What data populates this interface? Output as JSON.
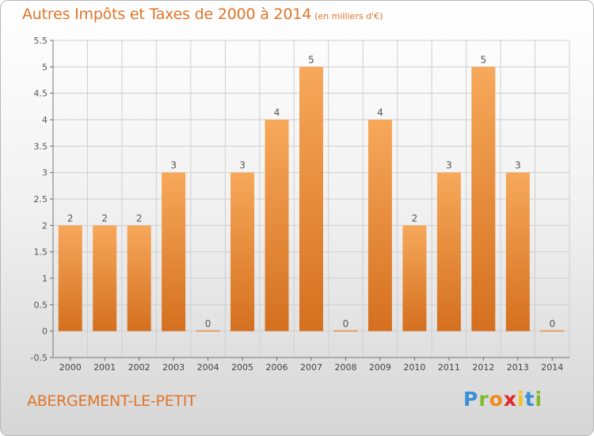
{
  "header": {
    "title": "Autres Impôts et Taxes de 2000 à 2014",
    "unit": "(en milliers d'€)"
  },
  "footer": {
    "commune": "ABERGEMENT-LE-PETIT",
    "logo_letters": [
      "P",
      "r",
      "o",
      "x",
      "i",
      "t",
      "i"
    ],
    "logo_colors": [
      "#3a8fd6",
      "#7dbb2c",
      "#f08a1c",
      "#e2262a",
      "#f3c11b",
      "#3a8fd6",
      "#7dbb2c"
    ]
  },
  "chart_data": {
    "type": "bar",
    "title": "Autres Impôts et Taxes de 2000 à 2014",
    "categories": [
      "2000",
      "2001",
      "2002",
      "2003",
      "2004",
      "2005",
      "2006",
      "2007",
      "2008",
      "2009",
      "2010",
      "2011",
      "2012",
      "2013",
      "2014"
    ],
    "values": [
      2,
      2,
      2,
      3,
      0,
      3,
      4,
      5,
      0,
      4,
      2,
      3,
      5,
      3,
      0
    ],
    "value_labels": [
      "2",
      "2",
      "2",
      "3",
      "0",
      "3",
      "4",
      "5",
      "0",
      "4",
      "2",
      "3",
      "5",
      "3",
      "0"
    ],
    "ylim": [
      -0.5,
      5.5
    ],
    "yticks": [
      -0.5,
      0,
      0.5,
      1,
      1.5,
      2,
      2.5,
      3,
      3.5,
      4,
      4.5,
      5,
      5.5
    ],
    "ytick_labels": [
      "-0.5",
      "0",
      "0.5",
      "1",
      "1.5",
      "2",
      "2.5",
      "3",
      "3.5",
      "4",
      "4.5",
      "5",
      "5.5"
    ],
    "grid": true,
    "colors": {
      "bar_light": "#f7a85a",
      "bar_dark": "#d4701f",
      "text": "#e07428"
    }
  }
}
